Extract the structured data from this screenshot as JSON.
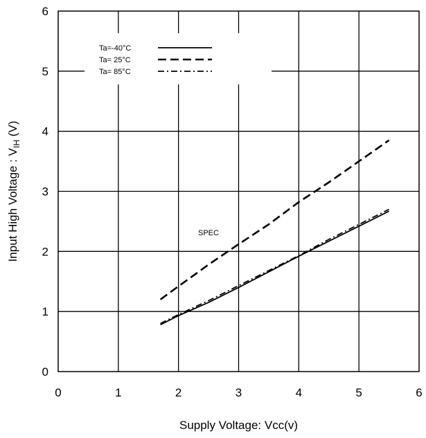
{
  "chart_data": {
    "type": "line",
    "xlabel": "Supply Voltage: Vcc(v)",
    "ylabel_main": "Input High Voltage : V",
    "ylabel_sub": "IH",
    "ylabel_unit": " (V)",
    "xlim": [
      0,
      6
    ],
    "ylim": [
      0,
      6
    ],
    "x_ticks": [
      "0",
      "1",
      "2",
      "3",
      "4",
      "5",
      "6"
    ],
    "y_ticks": [
      "0",
      "1",
      "2",
      "3",
      "4",
      "5",
      "6"
    ],
    "grid": true,
    "legend_position": "top-left",
    "annotation": "SPEC",
    "series": [
      {
        "name": "Ta=-40°C",
        "style": "solid",
        "x": [
          1.7,
          2.0,
          2.5,
          3.0,
          3.5,
          4.0,
          4.5,
          5.0,
          5.5
        ],
        "y": [
          0.78,
          0.93,
          1.15,
          1.4,
          1.66,
          1.92,
          2.17,
          2.42,
          2.67
        ]
      },
      {
        "name": "Ta= 25°C",
        "style": "dashed",
        "x": [
          1.7,
          2.0,
          2.5,
          3.0,
          3.5,
          4.0,
          4.5,
          5.0,
          5.5
        ],
        "y": [
          1.2,
          1.42,
          1.78,
          2.12,
          2.45,
          2.82,
          3.15,
          3.5,
          3.85
        ]
      },
      {
        "name": "Ta= 85°C",
        "style": "dashdot",
        "x": [
          1.7,
          2.0,
          2.5,
          3.0,
          3.5,
          4.0,
          4.5,
          5.0,
          5.5
        ],
        "y": [
          0.8,
          0.95,
          1.18,
          1.43,
          1.68,
          1.93,
          2.2,
          2.45,
          2.7
        ]
      }
    ]
  }
}
